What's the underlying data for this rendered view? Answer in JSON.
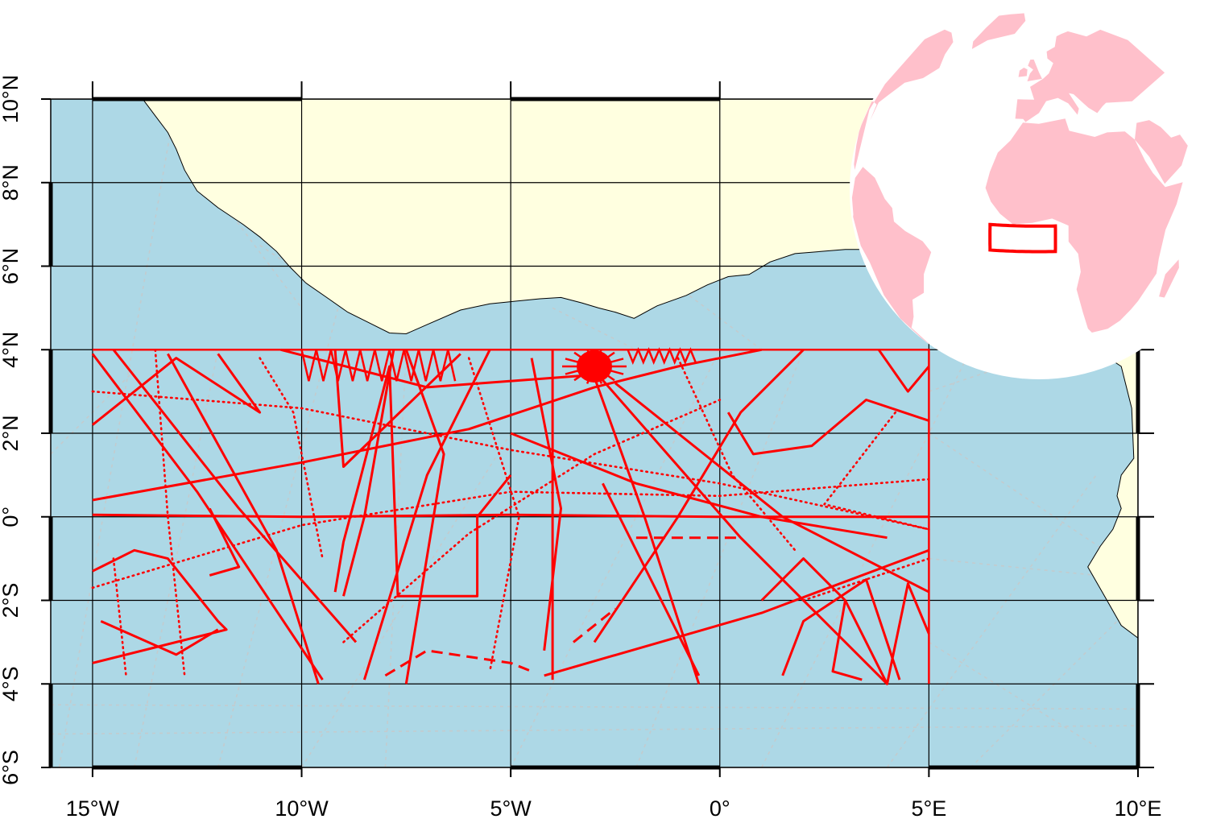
{
  "map": {
    "extent": {
      "lon_min": -16,
      "lon_max": 10,
      "lat_min": -6,
      "lat_max": 10
    },
    "lon_ticks": [
      {
        "value": -15,
        "label": "15°W"
      },
      {
        "value": -10,
        "label": "10°W"
      },
      {
        "value": -5,
        "label": "5°W"
      },
      {
        "value": 0,
        "label": "0°"
      },
      {
        "value": 5,
        "label": "5°E"
      },
      {
        "value": 10,
        "label": "10°E"
      }
    ],
    "lat_ticks": [
      {
        "value": 10,
        "label": "10°N"
      },
      {
        "value": 8,
        "label": "8°N"
      },
      {
        "value": 6,
        "label": "6°N"
      },
      {
        "value": 4,
        "label": "4°N"
      },
      {
        "value": 2,
        "label": "2°N"
      },
      {
        "value": 0,
        "label": "0°"
      },
      {
        "value": -2,
        "label": "2°S"
      },
      {
        "value": -4,
        "label": "4°S"
      },
      {
        "value": -6,
        "label": "6°S"
      }
    ],
    "selection_box": {
      "lon_min": -15,
      "lon_max": 5,
      "lat_min": -4,
      "lat_max": 4
    },
    "colors": {
      "ocean": "#add8e6",
      "land": "#ffffe0",
      "tracks": "#ff0000",
      "background_tracks": "#c8c8c8",
      "inset_land": "#ffc0cb",
      "inset_box": "#ff0000"
    },
    "coast_north": [
      [
        -13.8,
        10.0
      ],
      [
        -13.5,
        9.6
      ],
      [
        -13.2,
        9.2
      ],
      [
        -13.0,
        8.8
      ],
      [
        -12.8,
        8.3
      ],
      [
        -12.5,
        7.8
      ],
      [
        -12.0,
        7.4
      ],
      [
        -11.4,
        7.0
      ],
      [
        -11.0,
        6.7
      ],
      [
        -10.6,
        6.35
      ],
      [
        -10.3,
        6.0
      ],
      [
        -9.9,
        5.6
      ],
      [
        -9.4,
        5.25
      ],
      [
        -8.9,
        4.9
      ],
      [
        -8.3,
        4.6
      ],
      [
        -7.9,
        4.4
      ],
      [
        -7.5,
        4.38
      ],
      [
        -7.0,
        4.6
      ],
      [
        -6.2,
        4.95
      ],
      [
        -5.5,
        5.1
      ],
      [
        -5.0,
        5.15
      ],
      [
        -4.3,
        5.22
      ],
      [
        -3.8,
        5.25
      ],
      [
        -3.3,
        5.12
      ],
      [
        -2.9,
        5.0
      ],
      [
        -2.5,
        4.9
      ],
      [
        -2.05,
        4.75
      ],
      [
        -1.5,
        5.05
      ],
      [
        -0.8,
        5.3
      ],
      [
        -0.3,
        5.55
      ],
      [
        0.2,
        5.75
      ],
      [
        0.7,
        5.8
      ],
      [
        1.2,
        6.1
      ],
      [
        1.8,
        6.3
      ],
      [
        3.0,
        6.4
      ],
      [
        4.0,
        6.4
      ],
      [
        4.5,
        6.2
      ],
      [
        5.5,
        5.8
      ],
      [
        6.3,
        4.6
      ],
      [
        7.0,
        4.4
      ],
      [
        8.0,
        4.5
      ],
      [
        8.6,
        4.5
      ],
      [
        9.0,
        4.0
      ],
      [
        9.6,
        3.6
      ],
      [
        9.85,
        2.6
      ],
      [
        9.9,
        1.4
      ],
      [
        9.6,
        1.0
      ],
      [
        9.5,
        0.5
      ],
      [
        9.6,
        0.2
      ],
      [
        9.4,
        -0.3
      ],
      [
        9.1,
        -0.7
      ],
      [
        8.8,
        -1.2
      ],
      [
        9.2,
        -1.9
      ],
      [
        9.6,
        -2.6
      ],
      [
        10.0,
        -2.9
      ]
    ],
    "globe": {
      "center_lon": 0,
      "center_lat": 15
    },
    "tracks": [
      {
        "style": "solid",
        "points": [
          [
            -15,
            -3.5
          ],
          [
            -11.8,
            -2.7
          ],
          [
            -12,
            -2.5
          ],
          [
            -13.2,
            -1.0
          ],
          [
            -14,
            -0.8
          ],
          [
            -15,
            -1.3
          ]
        ]
      },
      {
        "style": "solid",
        "points": [
          [
            -15,
            0.4
          ],
          [
            -10,
            1.3
          ],
          [
            -6,
            2.1
          ],
          [
            -3,
            3.1
          ],
          [
            -1,
            3.6
          ],
          [
            1,
            4.0
          ]
        ]
      },
      {
        "style": "solid",
        "points": [
          [
            -15,
            0.05
          ],
          [
            -10,
            0.0
          ],
          [
            -5,
            0.05
          ],
          [
            0,
            0.0
          ],
          [
            5,
            0.0
          ]
        ]
      },
      {
        "style": "solid",
        "points": [
          [
            -15,
            3.9
          ],
          [
            -12.5,
            0.6
          ],
          [
            -9.5,
            -3.9
          ]
        ]
      },
      {
        "style": "solid",
        "points": [
          [
            -14.5,
            4.0
          ],
          [
            -11.5,
            0.2
          ],
          [
            -8.7,
            -3.0
          ]
        ]
      },
      {
        "style": "solid",
        "points": [
          [
            -13.2,
            3.9
          ],
          [
            -10.6,
            -0.8
          ],
          [
            -9.6,
            -4.0
          ]
        ]
      },
      {
        "style": "solid",
        "points": [
          [
            -10.5,
            4.0
          ],
          [
            -7.0,
            3.1
          ],
          [
            -3,
            3.4
          ]
        ]
      },
      {
        "style": "solid",
        "points": [
          [
            -9.2,
            4.0
          ],
          [
            -9.0,
            1.2
          ],
          [
            -6.2,
            3.9
          ]
        ]
      },
      {
        "style": "solid",
        "points": [
          [
            -9.2,
            -1.8
          ],
          [
            -9.0,
            -0.6
          ],
          [
            -8.6,
            0.9
          ],
          [
            -7.9,
            3.6
          ],
          [
            -7.7,
            -1.9
          ],
          [
            -5.8,
            -1.9
          ],
          [
            -5.8,
            0.0
          ],
          [
            -5.0,
            1.0
          ]
        ]
      },
      {
        "style": "solid",
        "points": [
          [
            -7.8,
            4.0
          ],
          [
            -8.5,
            0.0
          ],
          [
            -9.0,
            -1.9
          ]
        ]
      },
      {
        "style": "solid",
        "points": [
          [
            -7.5,
            4.0
          ],
          [
            -6.6,
            1.5
          ],
          [
            -7.5,
            -4.0
          ]
        ]
      },
      {
        "style": "solid",
        "points": [
          [
            -5.5,
            4.0
          ],
          [
            -7.0,
            1.0
          ],
          [
            -8.5,
            -3.9
          ]
        ]
      },
      {
        "style": "solid",
        "points": [
          [
            -4.0,
            4.0
          ],
          [
            -4.0,
            -3.9
          ]
        ]
      },
      {
        "style": "solid",
        "points": [
          [
            -4.5,
            3.8
          ],
          [
            -3.8,
            0.2
          ],
          [
            -4.2,
            -3.2
          ]
        ]
      },
      {
        "style": "solid",
        "points": [
          [
            -3.2,
            3.9
          ],
          [
            -1.8,
            0.0
          ],
          [
            -0.5,
            -4.0
          ]
        ]
      },
      {
        "style": "solid",
        "points": [
          [
            -3.0,
            3.5
          ],
          [
            0.5,
            -0.5
          ],
          [
            4.0,
            -4.0
          ]
        ]
      },
      {
        "style": "solid",
        "points": [
          [
            -2.5,
            3.2
          ],
          [
            1.5,
            0.0
          ],
          [
            5.0,
            -1.8
          ]
        ]
      },
      {
        "style": "solid",
        "points": [
          [
            -5.0,
            2.0
          ],
          [
            -2.0,
            0.8
          ],
          [
            1.0,
            0.0
          ],
          [
            4.0,
            -0.5
          ]
        ]
      },
      {
        "style": "solid",
        "points": [
          [
            -4.2,
            -3.8
          ],
          [
            1.0,
            -2.3
          ],
          [
            5.0,
            -0.8
          ]
        ]
      },
      {
        "style": "solid",
        "points": [
          [
            1.0,
            -2.0
          ],
          [
            2.0,
            -1.0
          ],
          [
            3.0,
            -2.0
          ],
          [
            4.0,
            -4.0
          ],
          [
            4.5,
            -1.6
          ],
          [
            5.0,
            -2.8
          ]
        ]
      },
      {
        "style": "solid",
        "points": [
          [
            2.0,
            4.0
          ],
          [
            0.5,
            2.5
          ],
          [
            -1.0,
            0.0
          ],
          [
            -3.0,
            -3.0
          ]
        ]
      },
      {
        "style": "solid",
        "points": [
          [
            1.5,
            -3.8
          ],
          [
            2.0,
            -2.5
          ],
          [
            3.5,
            -1.5
          ],
          [
            4.3,
            -3.9
          ]
        ]
      },
      {
        "style": "solid",
        "points": [
          [
            0.2,
            2.5
          ],
          [
            0.8,
            1.5
          ],
          [
            2.2,
            1.7
          ],
          [
            3.5,
            2.8
          ],
          [
            5.0,
            2.3
          ]
        ]
      },
      {
        "style": "solid",
        "points": [
          [
            3.8,
            4.0
          ],
          [
            4.5,
            3.0
          ],
          [
            5.0,
            3.6
          ]
        ]
      },
      {
        "style": "solid",
        "points": [
          [
            -14.8,
            -2.5
          ],
          [
            -13.0,
            -3.3
          ],
          [
            -12.0,
            -2.7
          ]
        ]
      },
      {
        "style": "solid",
        "points": [
          [
            -12.2,
            0.2
          ],
          [
            -11.5,
            -1.2
          ],
          [
            -12.2,
            -1.4
          ]
        ]
      },
      {
        "style": "solid",
        "points": [
          [
            -15,
            2.2
          ],
          [
            -13.0,
            3.8
          ],
          [
            -11.0,
            2.5
          ],
          [
            -12.0,
            3.9
          ]
        ]
      },
      {
        "style": "solid",
        "points": [
          [
            -2.8,
            0.8
          ],
          [
            -0.5,
            -3.8
          ]
        ]
      },
      {
        "style": "solid",
        "points": [
          [
            3.0,
            -2.0
          ],
          [
            2.7,
            -3.7
          ],
          [
            3.4,
            -3.9
          ]
        ]
      },
      {
        "style": "dashed",
        "points": [
          [
            -2.0,
            -0.5
          ],
          [
            0.5,
            -0.5
          ]
        ]
      },
      {
        "style": "dashed",
        "points": [
          [
            -8.0,
            -3.8
          ],
          [
            -7.0,
            -3.2
          ],
          [
            -5.0,
            -3.5
          ],
          [
            -4.5,
            -3.7
          ]
        ]
      },
      {
        "style": "dashed",
        "points": [
          [
            -3.5,
            -3.0
          ],
          [
            -2.5,
            -2.2
          ]
        ]
      },
      {
        "style": "dotted",
        "points": [
          [
            -15,
            -1.7
          ],
          [
            -10,
            -0.2
          ],
          [
            -5,
            0.6
          ],
          [
            0,
            0.5
          ],
          [
            5,
            0.9
          ]
        ]
      },
      {
        "style": "dotted",
        "points": [
          [
            -15,
            3.0
          ],
          [
            -10,
            2.6
          ],
          [
            -5,
            1.6
          ],
          [
            0,
            0.8
          ],
          [
            5,
            -0.3
          ]
        ]
      },
      {
        "style": "dotted",
        "points": [
          [
            -9.0,
            -3.0
          ],
          [
            -6,
            -0.4
          ],
          [
            -3,
            1.5
          ],
          [
            0,
            2.8
          ]
        ]
      },
      {
        "style": "dotted",
        "points": [
          [
            -13.5,
            4.0
          ],
          [
            -13.2,
            0.0
          ],
          [
            -12.8,
            -3.8
          ]
        ]
      },
      {
        "style": "dotted",
        "points": [
          [
            -14.5,
            -1.0
          ],
          [
            -14.2,
            -3.8
          ]
        ]
      },
      {
        "style": "dotted",
        "points": [
          [
            -6.0,
            3.8
          ],
          [
            -4.8,
            0.0
          ],
          [
            -5.5,
            -3.7
          ]
        ]
      },
      {
        "style": "dotted",
        "points": [
          [
            2.0,
            -2.0
          ],
          [
            5.0,
            -1.0
          ]
        ]
      },
      {
        "style": "dotted",
        "points": [
          [
            4.2,
            2.5
          ],
          [
            2.5,
            0.3
          ],
          [
            5.0,
            -0.3
          ]
        ]
      },
      {
        "style": "dotted",
        "points": [
          [
            -1.0,
            3.8
          ],
          [
            0.3,
            1.0
          ],
          [
            1.8,
            -0.8
          ]
        ]
      },
      {
        "style": "dotted",
        "points": [
          [
            -11.0,
            3.8
          ],
          [
            -10.2,
            2.5
          ],
          [
            -9.5,
            -1.0
          ]
        ]
      }
    ],
    "dense_cluster": {
      "lon": -3.0,
      "lat": 3.6
    }
  }
}
